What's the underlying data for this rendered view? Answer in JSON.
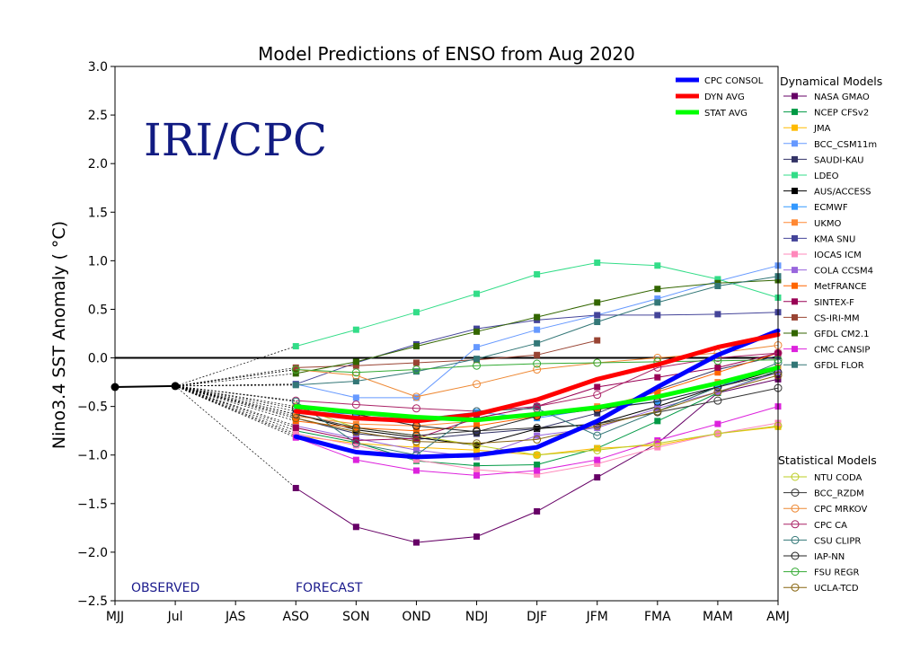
{
  "chart_data": {
    "type": "line",
    "title": "Model Predictions of ENSO from Aug 2020",
    "ylabel": "Nino3.4 SST Anomaly ( °C)",
    "watermark": "IRI/CPC",
    "observed_label": "OBSERVED",
    "forecast_label": "FORECAST",
    "x": [
      "MJJ",
      "Jul",
      "JAS",
      "ASO",
      "SON",
      "OND",
      "NDJ",
      "DJF",
      "JFM",
      "FMA",
      "MAM",
      "AMJ"
    ],
    "ylim": [
      -2.5,
      3.0
    ],
    "yticks": [
      "3.0",
      "2.5",
      "2.0",
      "1.5",
      "1.0",
      "0.5",
      "0.0",
      "−0.5",
      "−1.0",
      "−1.5",
      "−2.0",
      "−2.5"
    ],
    "ytick_values": [
      3.0,
      2.5,
      2.0,
      1.5,
      1.0,
      0.5,
      0.0,
      -0.5,
      -1.0,
      -1.5,
      -2.0,
      -2.5
    ],
    "zero_line": 0.0,
    "observed": {
      "x": [
        "MJJ",
        "Jul"
      ],
      "values": [
        -0.3,
        -0.29
      ]
    },
    "dynamical_header": "Dynamical Models",
    "statistical_header": "Statistical Models",
    "summary_series": [
      {
        "name": "CPC CONSOL",
        "color": "#0000ff",
        "values": [
          -0.81,
          -0.97,
          -1.02,
          -1.0,
          -0.92,
          -0.65,
          -0.3,
          0.03,
          0.28
        ]
      },
      {
        "name": "DYN AVG",
        "color": "#ff0000",
        "values": [
          -0.55,
          -0.62,
          -0.65,
          -0.58,
          -0.43,
          -0.22,
          -0.07,
          0.11,
          0.24
        ]
      },
      {
        "name": "STAT AVG",
        "color": "#00ff00",
        "values": [
          -0.5,
          -0.56,
          -0.61,
          -0.64,
          -0.58,
          -0.51,
          -0.4,
          -0.26,
          -0.1
        ]
      }
    ],
    "dynamical_models": [
      {
        "name": "NASA GMAO",
        "color": "#660066",
        "values": [
          -1.34,
          -1.74,
          -1.9,
          -1.84,
          -1.58,
          -1.23,
          -0.88,
          -0.36,
          -0.22
        ]
      },
      {
        "name": "NCEP CFSv2",
        "color": "#009944",
        "values": [
          -0.75,
          -0.87,
          -1.06,
          -1.11,
          -1.1,
          -0.93,
          -0.65,
          -0.36,
          -0.13
        ]
      },
      {
        "name": "JMA",
        "color": "#ffbb00",
        "values": [
          -0.8,
          -0.88,
          -0.92,
          -0.95,
          -1.0,
          -0.93,
          -0.9,
          -0.78,
          -0.71
        ]
      },
      {
        "name": "BCC_CSM11m",
        "color": "#6699ff",
        "values": [
          -0.27,
          -0.41,
          -0.41,
          0.11,
          0.29,
          0.44,
          0.61,
          0.79,
          0.95
        ]
      },
      {
        "name": "SAUDI-KAU",
        "color": "#333366",
        "values": [
          -0.62,
          -0.78,
          -0.84,
          -0.78,
          -0.73,
          -0.57,
          -0.33,
          -0.12,
          0.02
        ]
      },
      {
        "name": "LDEO",
        "color": "#33dd88",
        "values": [
          0.12,
          0.29,
          0.47,
          0.66,
          0.86,
          0.98,
          0.95,
          0.81,
          0.62
        ]
      },
      {
        "name": "AUS/ACCESS",
        "color": "#000000",
        "values": [
          -0.58,
          -0.74,
          -0.82,
          -0.9,
          -0.73,
          -0.68,
          -0.5,
          -0.3,
          -0.12
        ]
      },
      {
        "name": "ECMWF",
        "color": "#3399ff",
        "values": [
          -0.55,
          -0.58,
          -0.63,
          -0.56,
          -0.62,
          -0.52,
          -0.45,
          -0.3,
          -0.1
        ]
      },
      {
        "name": "UKMO",
        "color": "#ff8833",
        "values": [
          -0.6,
          -0.68,
          -0.7,
          -0.65,
          -0.58,
          -0.5,
          -0.4,
          -0.25,
          -0.1
        ]
      },
      {
        "name": "KMA SNU",
        "color": "#444499",
        "values": [
          -0.27,
          -0.05,
          0.14,
          0.3,
          0.39,
          0.44,
          0.44,
          0.45,
          0.47
        ]
      },
      {
        "name": "IOCAS ICM",
        "color": "#ff88bb",
        "values": [
          -0.78,
          -0.9,
          -1.05,
          -1.15,
          -1.2,
          -1.09,
          -0.92,
          -0.78,
          -0.67
        ]
      },
      {
        "name": "COLA CCSM4",
        "color": "#9966dd",
        "values": [
          -0.7,
          -0.83,
          -0.95,
          -1.02,
          -0.8,
          -0.72,
          -0.52,
          -0.35,
          -0.15
        ]
      },
      {
        "name": "MetFRANCE",
        "color": "#ff6600",
        "values": [
          -0.65,
          -0.72,
          -0.75,
          -0.7,
          -0.6,
          -0.52,
          -0.35,
          -0.15,
          0.05
        ]
      },
      {
        "name": "SINTEX-F",
        "color": "#990055",
        "values": [
          -0.72,
          -0.85,
          -0.83,
          -0.62,
          -0.5,
          -0.3,
          -0.2,
          -0.1,
          0.05
        ]
      },
      {
        "name": "CS-IRI-MM",
        "color": "#994433",
        "values": [
          -0.1,
          -0.08,
          -0.05,
          -0.02,
          0.03,
          0.18,
          null,
          null,
          null
        ]
      },
      {
        "name": "GFDL CM2.1",
        "color": "#336600",
        "values": [
          -0.16,
          -0.04,
          0.12,
          0.27,
          0.42,
          0.57,
          0.71,
          0.77,
          0.8
        ]
      },
      {
        "name": "CMC CANSIP",
        "color": "#dd22dd",
        "values": [
          -0.82,
          -1.05,
          -1.16,
          -1.21,
          -1.16,
          -1.05,
          -0.85,
          -0.68,
          -0.5
        ]
      },
      {
        "name": "GFDL FLOR",
        "color": "#337777",
        "values": [
          -0.28,
          -0.24,
          -0.14,
          -0.01,
          0.15,
          0.37,
          0.57,
          0.74,
          0.84
        ]
      }
    ],
    "statistical_models": [
      {
        "name": "NTU CODA",
        "color": "#bbcc22",
        "values": [
          -0.5,
          -0.72,
          -0.8,
          -0.9,
          -1.0,
          -0.95,
          -0.88,
          -0.78,
          -0.7
        ]
      },
      {
        "name": "BCC_RZDM",
        "color": "#333333",
        "values": [
          -0.58,
          -0.72,
          -0.8,
          -0.75,
          -0.72,
          -0.68,
          -0.56,
          -0.44,
          -0.31
        ]
      },
      {
        "name": "CPC MRKOV",
        "color": "#ee8833",
        "values": [
          -0.12,
          -0.18,
          -0.4,
          -0.27,
          -0.12,
          -0.05,
          0.0,
          0.05,
          0.13
        ]
      },
      {
        "name": "CPC CA",
        "color": "#aa2266",
        "values": [
          -0.44,
          -0.48,
          -0.52,
          -0.55,
          -0.5,
          -0.38,
          -0.1,
          0.0,
          0.05
        ]
      },
      {
        "name": "CSU CLIPR",
        "color": "#337777",
        "values": [
          -0.45,
          -0.88,
          -1.0,
          -0.55,
          -0.52,
          -0.8,
          -0.55,
          -0.3,
          -0.05
        ]
      },
      {
        "name": "IAP-NN",
        "color": "#222222",
        "values": [
          -0.52,
          -0.58,
          -0.7,
          -0.76,
          -0.6,
          -0.53,
          -0.45,
          -0.3,
          -0.15
        ]
      },
      {
        "name": "FSU REGR",
        "color": "#33aa33",
        "values": [
          -0.12,
          -0.15,
          -0.12,
          -0.08,
          -0.06,
          -0.05,
          -0.04,
          -0.03,
          -0.02
        ]
      },
      {
        "name": "UCLA-TCD",
        "color": "#886611",
        "values": [
          -0.62,
          -0.76,
          -0.86,
          -0.88,
          -0.84,
          -0.7,
          -0.55,
          -0.35,
          -0.18
        ]
      }
    ]
  }
}
